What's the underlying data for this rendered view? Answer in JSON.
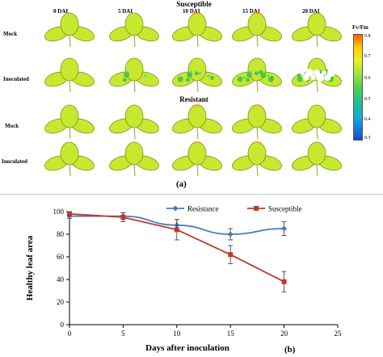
{
  "figure": {
    "susceptible_heading": "Susceptible",
    "resistant_heading": "Resistant",
    "dai_labels": [
      "0 DAI",
      "5 DAI",
      "10 DAI",
      "15 DAI",
      "20 DAI"
    ],
    "row_labels": {
      "mock_top": "Mock",
      "inoculated_top": "Inoculated",
      "mock_bottom": "Mock",
      "inoculated_bottom": "Inoculated"
    },
    "colorbar": {
      "title": "Fv/Fm",
      "ticks": [
        "0.8",
        "0.7",
        "0.6",
        "0.5",
        "0.4",
        "0.3"
      ]
    },
    "panel_a_label": "(a)",
    "panel_b_label": "(b)",
    "colors": {
      "leaf_fill": "#c8e830",
      "leaf_stroke": "#6e9a18",
      "stem": "#9ab436",
      "necrosis": "#ffffff",
      "stress_green": "#3fc04a",
      "stress_cyan": "#2ed4c0"
    }
  },
  "chart_data": {
    "type": "line",
    "xlabel": "Days after inoculation",
    "ylabel": "Healthy leaf area",
    "x": [
      0,
      5,
      10,
      15,
      20
    ],
    "xlim": [
      0,
      25
    ],
    "ylim": [
      0,
      100
    ],
    "xticks": [
      0,
      5,
      10,
      15,
      20,
      25
    ],
    "yticks": [
      0,
      20,
      40,
      60,
      80,
      100
    ],
    "grid": false,
    "legend_position": "top-right",
    "series": [
      {
        "name": "Resistance",
        "values": [
          96,
          96,
          88,
          80,
          85
        ],
        "err": [
          2,
          3,
          5,
          5,
          6
        ],
        "color": "#4a7ab8",
        "marker": "diamond"
      },
      {
        "name": "Susceptible",
        "values": [
          98,
          95,
          84,
          62,
          38
        ],
        "err": [
          2,
          4,
          9,
          8,
          9
        ],
        "color": "#c0392b",
        "marker": "square"
      }
    ]
  }
}
